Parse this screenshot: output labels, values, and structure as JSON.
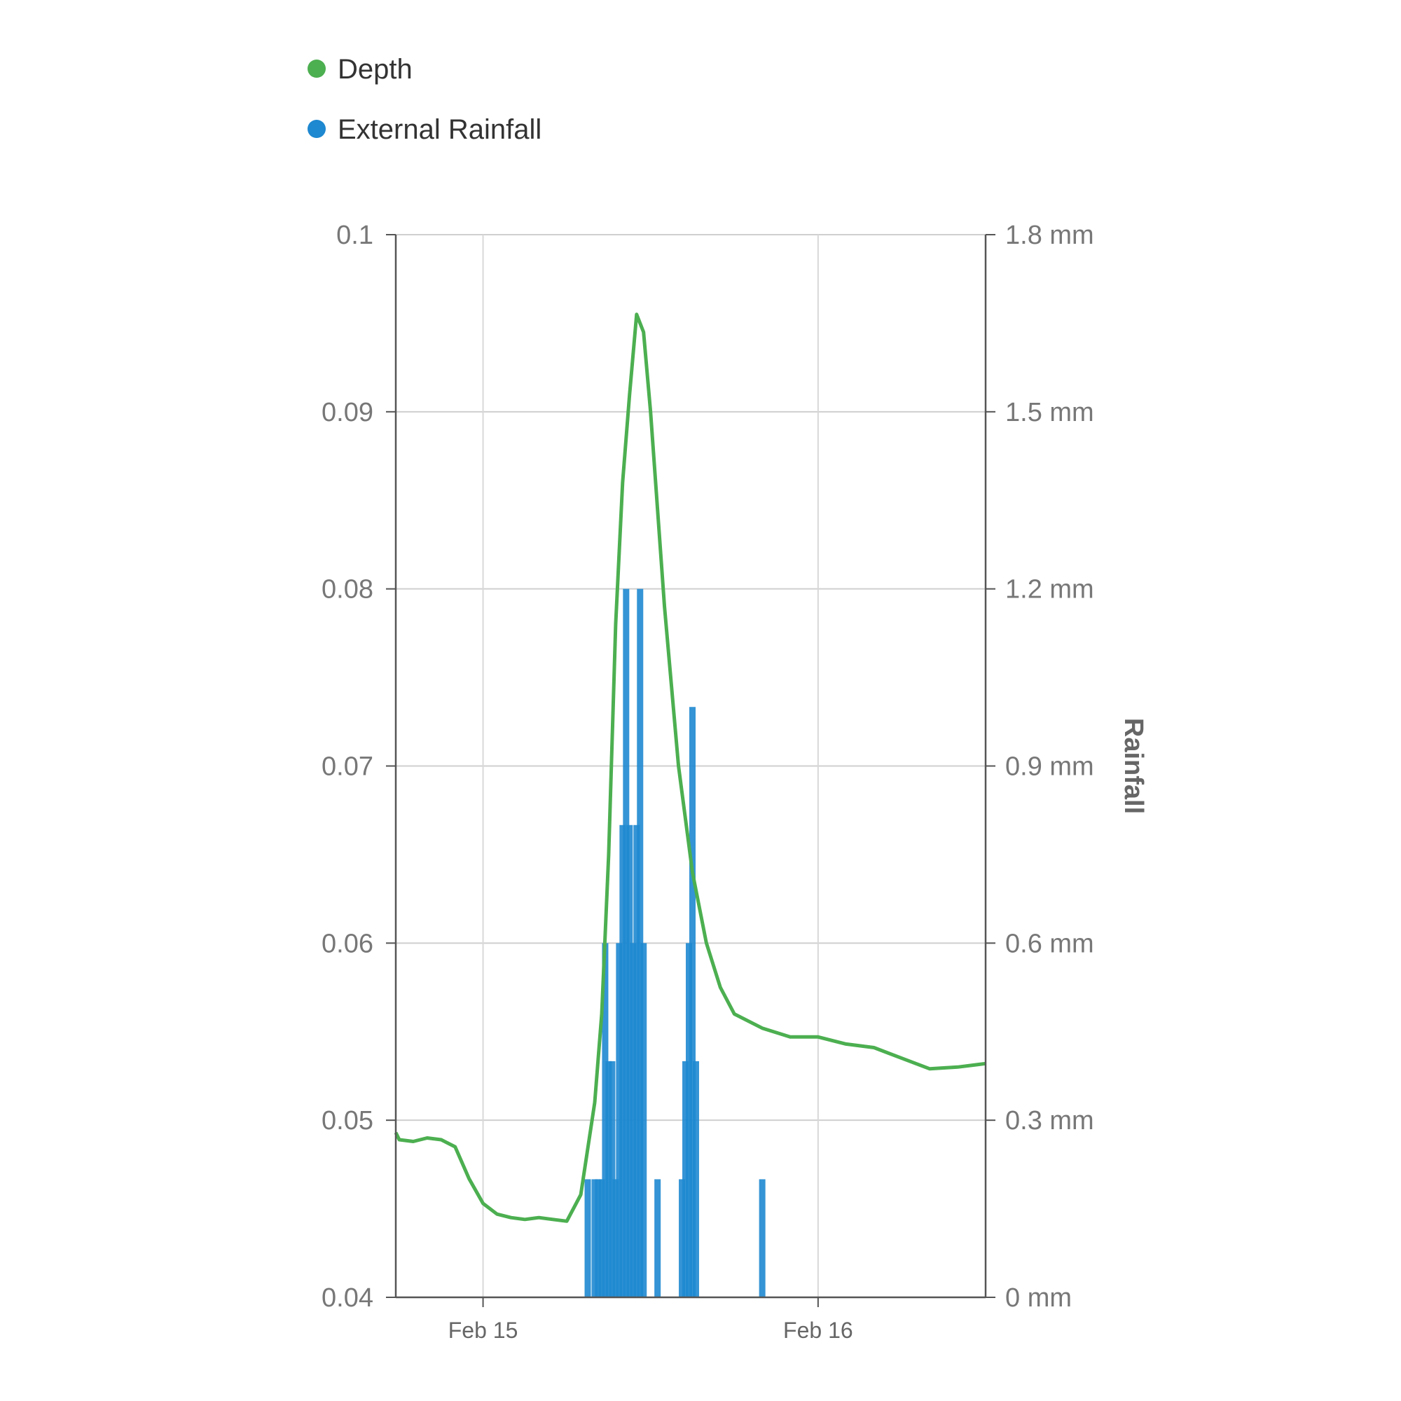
{
  "chart_data": {
    "type": "line",
    "legend": {
      "position": "top-left",
      "items": [
        {
          "name": "Depth",
          "color": "#4caf50"
        },
        {
          "name": "External Rainfall",
          "color": "#1e88d0"
        }
      ]
    },
    "x_axis": {
      "type": "date",
      "range": [
        "2024-02-14T17:45",
        "2024-02-16T12:00"
      ],
      "ticks": [
        {
          "value": "2024-02-15T00:00",
          "label": "Feb 15"
        },
        {
          "value": "2024-02-16T00:00",
          "label": "Feb 16"
        }
      ],
      "grid": true
    },
    "y_axis_left": {
      "label": "",
      "range": [
        0.04,
        0.1
      ],
      "ticks": [
        0.04,
        0.05,
        0.06,
        0.07,
        0.08,
        0.09,
        0.1
      ],
      "tick_labels": [
        "0.04",
        "0.05",
        "0.06",
        "0.07",
        "0.08",
        "0.09",
        "0.1"
      ],
      "grid": true
    },
    "y_axis_right": {
      "label": "Rainfall",
      "range": [
        0,
        1.8
      ],
      "ticks": [
        0,
        0.3,
        0.6,
        0.9,
        1.2,
        1.5,
        1.8
      ],
      "tick_labels": [
        "0 mm",
        "0.3 mm",
        "0.6 mm",
        "0.9 mm",
        "1.2 mm",
        "1.5 mm",
        "1.8 mm"
      ]
    },
    "series": [
      {
        "name": "Depth",
        "kind": "line",
        "axis": "left",
        "color": "#4caf50",
        "points": [
          [
            "2024-02-14T17:45",
            0.0493
          ],
          [
            "2024-02-14T18:00",
            0.0489
          ],
          [
            "2024-02-14T19:00",
            0.0488
          ],
          [
            "2024-02-14T20:00",
            0.049
          ],
          [
            "2024-02-14T21:00",
            0.0489
          ],
          [
            "2024-02-14T22:00",
            0.0485
          ],
          [
            "2024-02-14T23:00",
            0.0467
          ],
          [
            "2024-02-15T00:00",
            0.0453
          ],
          [
            "2024-02-15T01:00",
            0.0447
          ],
          [
            "2024-02-15T02:00",
            0.0445
          ],
          [
            "2024-02-15T03:00",
            0.0444
          ],
          [
            "2024-02-15T04:00",
            0.0445
          ],
          [
            "2024-02-15T05:00",
            0.0444
          ],
          [
            "2024-02-15T06:00",
            0.0443
          ],
          [
            "2024-02-15T07:00",
            0.0458
          ],
          [
            "2024-02-15T08:00",
            0.051
          ],
          [
            "2024-02-15T08:30",
            0.056
          ],
          [
            "2024-02-15T09:00",
            0.065
          ],
          [
            "2024-02-15T09:30",
            0.078
          ],
          [
            "2024-02-15T10:00",
            0.086
          ],
          [
            "2024-02-15T10:30",
            0.091
          ],
          [
            "2024-02-15T11:00",
            0.0955
          ],
          [
            "2024-02-15T11:30",
            0.0945
          ],
          [
            "2024-02-15T12:00",
            0.09
          ],
          [
            "2024-02-15T13:00",
            0.079
          ],
          [
            "2024-02-15T14:00",
            0.07
          ],
          [
            "2024-02-15T15:00",
            0.064
          ],
          [
            "2024-02-15T16:00",
            0.06
          ],
          [
            "2024-02-15T17:00",
            0.0575
          ],
          [
            "2024-02-15T18:00",
            0.056
          ],
          [
            "2024-02-15T20:00",
            0.0552
          ],
          [
            "2024-02-15T22:00",
            0.0547
          ],
          [
            "2024-02-16T00:00",
            0.0547
          ],
          [
            "2024-02-16T02:00",
            0.0543
          ],
          [
            "2024-02-16T04:00",
            0.0541
          ],
          [
            "2024-02-16T06:00",
            0.0535
          ],
          [
            "2024-02-16T08:00",
            0.0529
          ],
          [
            "2024-02-16T10:00",
            0.053
          ],
          [
            "2024-02-16T12:00",
            0.0532
          ]
        ]
      },
      {
        "name": "External Rainfall",
        "kind": "bar",
        "axis": "right",
        "color": "#1e88d0",
        "points": [
          [
            "2024-02-15T07:30",
            0.2
          ],
          [
            "2024-02-15T08:00",
            0.2
          ],
          [
            "2024-02-15T08:15",
            0.2
          ],
          [
            "2024-02-15T08:30",
            0.2
          ],
          [
            "2024-02-15T08:45",
            0.6
          ],
          [
            "2024-02-15T09:00",
            0.4
          ],
          [
            "2024-02-15T09:15",
            0.4
          ],
          [
            "2024-02-15T09:30",
            0.2
          ],
          [
            "2024-02-15T09:45",
            0.6
          ],
          [
            "2024-02-15T10:00",
            0.8
          ],
          [
            "2024-02-15T10:15",
            1.2
          ],
          [
            "2024-02-15T10:30",
            0.8
          ],
          [
            "2024-02-15T10:45",
            0.6
          ],
          [
            "2024-02-15T11:00",
            0.8
          ],
          [
            "2024-02-15T11:15",
            1.2
          ],
          [
            "2024-02-15T11:30",
            0.6
          ],
          [
            "2024-02-15T12:30",
            0.2
          ],
          [
            "2024-02-15T14:15",
            0.2
          ],
          [
            "2024-02-15T14:30",
            0.4
          ],
          [
            "2024-02-15T14:45",
            0.6
          ],
          [
            "2024-02-15T15:00",
            1.0
          ],
          [
            "2024-02-15T15:15",
            0.4
          ],
          [
            "2024-02-15T20:00",
            0.2
          ]
        ]
      }
    ]
  }
}
